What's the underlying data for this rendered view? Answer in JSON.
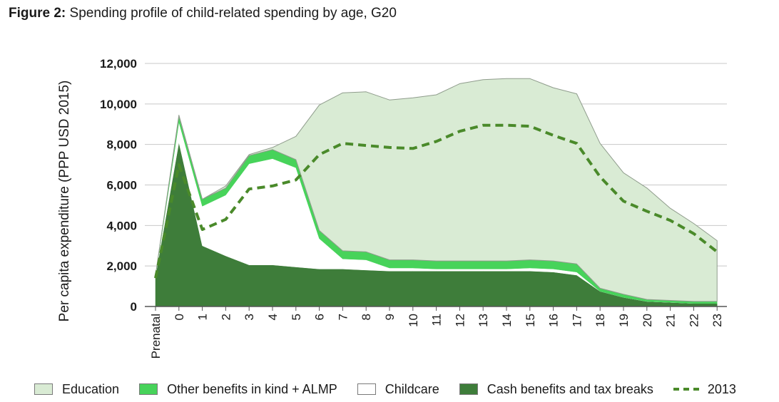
{
  "header": {
    "figure_label": "Figure 2:",
    "figure_title": "Spending profile of child-related spending by age, G20"
  },
  "colors": {
    "education": "#d9ebd4",
    "other_benefits": "#47d35a",
    "childcare": "#ffffff",
    "cash_benefits": "#3e7d3a",
    "line_2013": "#4a8a2a"
  },
  "chart_data": {
    "type": "area",
    "title": "Spending profile of child-related spending by age, G20",
    "xlabel": "",
    "ylabel": "Per capita expenditure (PPP USD 2015)",
    "ylim": [
      0,
      12000
    ],
    "yticks": [
      0,
      2000,
      4000,
      6000,
      8000,
      10000,
      12000
    ],
    "ytick_labels": [
      "0",
      "2,000",
      "4,000",
      "6,000",
      "8,000",
      "10,000",
      "12,000"
    ],
    "grid": true,
    "legend_position": "bottom",
    "categories": [
      "Prenatal",
      "0",
      "1",
      "2",
      "3",
      "4",
      "5",
      "6",
      "7",
      "8",
      "9",
      "10",
      "11",
      "12",
      "13",
      "14",
      "15",
      "16",
      "17",
      "18",
      "19",
      "20",
      "21",
      "22",
      "23"
    ],
    "stacked": true,
    "series": [
      {
        "name": "Cash benefits and tax breaks",
        "key": "cash_benefits",
        "values": [
          1500,
          8100,
          3000,
          2500,
          2050,
          2050,
          1950,
          1850,
          1850,
          1800,
          1750,
          1750,
          1750,
          1750,
          1750,
          1750,
          1750,
          1700,
          1550,
          750,
          450,
          250,
          200,
          150,
          150
        ]
      },
      {
        "name": "Childcare",
        "key": "childcare",
        "values": [
          0,
          1000,
          1950,
          3000,
          5000,
          5250,
          4900,
          1500,
          500,
          500,
          150,
          150,
          100,
          100,
          100,
          100,
          150,
          150,
          150,
          0,
          0,
          0,
          0,
          0,
          0
        ]
      },
      {
        "name": "Other benefits in kind + ALMP",
        "key": "other_benefits",
        "values": [
          50,
          300,
          350,
          350,
          400,
          450,
          400,
          400,
          400,
          400,
          400,
          400,
          400,
          400,
          400,
          400,
          400,
          400,
          400,
          150,
          150,
          100,
          100,
          100,
          100
        ]
      },
      {
        "name": "Education",
        "key": "education",
        "values": [
          0,
          50,
          0,
          100,
          50,
          100,
          1150,
          6200,
          7800,
          7900,
          7900,
          8000,
          8200,
          8750,
          8950,
          9000,
          8950,
          8550,
          8400,
          7150,
          6000,
          5500,
          4550,
          3850,
          3000
        ]
      }
    ],
    "line_series": {
      "name": "2013",
      "key": "line_2013",
      "values": [
        1400,
        7000,
        3800,
        4300,
        5800,
        5950,
        6250,
        7500,
        8050,
        7950,
        7850,
        7800,
        8150,
        8650,
        8950,
        8950,
        8900,
        8450,
        8050,
        6400,
        5200,
        4700,
        4250,
        3600,
        2700
      ]
    }
  },
  "legend": {
    "items": [
      {
        "key": "education",
        "label": "Education"
      },
      {
        "key": "other_benefits",
        "label": "Other benefits in kind + ALMP"
      },
      {
        "key": "childcare",
        "label": "Childcare"
      },
      {
        "key": "cash_benefits",
        "label": "Cash benefits and tax breaks"
      },
      {
        "key": "line_2013",
        "label": "2013"
      }
    ]
  }
}
